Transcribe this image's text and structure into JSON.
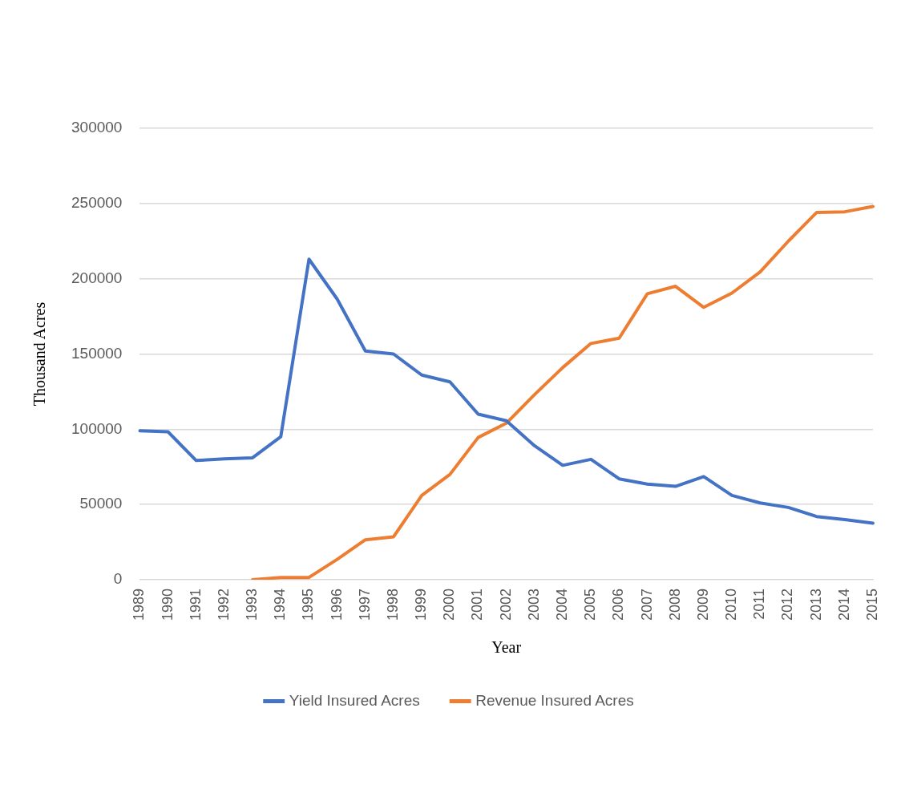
{
  "chart_data": {
    "type": "line",
    "xlabel": "Year",
    "ylabel": "Thousand Acres",
    "categories": [
      "1989",
      "1990",
      "1991",
      "1992",
      "1993",
      "1994",
      "1995",
      "1996",
      "1997",
      "1998",
      "1999",
      "2000",
      "2001",
      "2002",
      "2003",
      "2004",
      "2005",
      "2006",
      "2007",
      "2008",
      "2009",
      "2010",
      "2011",
      "2012",
      "2013",
      "2014",
      "2015"
    ],
    "series": [
      {
        "name": "Yield Insured Acres",
        "color": "#4472c4",
        "values": [
          99000,
          98300,
          79200,
          80300,
          81000,
          95000,
          213000,
          186500,
          152000,
          150000,
          136000,
          131500,
          110000,
          105600,
          89000,
          76000,
          80000,
          67000,
          63500,
          62000,
          68500,
          56000,
          51000,
          48000,
          42000,
          40000,
          37500
        ]
      },
      {
        "name": "Revenue Insured Acres",
        "color": "#ed7d31",
        "values": [
          null,
          null,
          null,
          null,
          0,
          1500,
          1500,
          13500,
          26500,
          28500,
          56000,
          70000,
          94500,
          104000,
          123000,
          141000,
          157000,
          160500,
          190000,
          195000,
          181000,
          190500,
          204500,
          225000,
          244000,
          244500,
          248000
        ]
      }
    ],
    "ylim": [
      0,
      300000
    ],
    "yticks": [
      0,
      50000,
      100000,
      150000,
      200000,
      250000,
      300000
    ],
    "grid": "y",
    "legend": "bottom",
    "marker": "none",
    "line_style": "solid"
  }
}
